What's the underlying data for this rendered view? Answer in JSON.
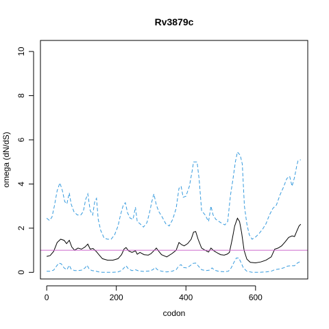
{
  "chart_data": {
    "type": "line",
    "title": "Rv3879c",
    "xlabel": "codon",
    "ylabel": "omega (dN/dS)",
    "xlim": [
      -18,
      750
    ],
    "ylim": [
      -0.3,
      10.5
    ],
    "xticks": [
      0,
      200,
      400,
      600
    ],
    "yticks": [
      0,
      2,
      4,
      6,
      8,
      10
    ],
    "grid": false,
    "reference_line": {
      "y": 1,
      "color": "#cc66cc"
    },
    "series": [
      {
        "role": "estimate",
        "color": "#000000",
        "dash": "solid",
        "points": [
          [
            0,
            0.72
          ],
          [
            10,
            0.76
          ],
          [
            20,
            0.95
          ],
          [
            30,
            1.35
          ],
          [
            40,
            1.5
          ],
          [
            50,
            1.45
          ],
          [
            57,
            1.3
          ],
          [
            65,
            1.45
          ],
          [
            72,
            1.15
          ],
          [
            80,
            1.0
          ],
          [
            90,
            1.1
          ],
          [
            100,
            1.05
          ],
          [
            110,
            1.15
          ],
          [
            118,
            1.28
          ],
          [
            125,
            1.05
          ],
          [
            133,
            1.08
          ],
          [
            142,
            0.95
          ],
          [
            150,
            0.8
          ],
          [
            160,
            0.62
          ],
          [
            175,
            0.55
          ],
          [
            190,
            0.55
          ],
          [
            205,
            0.62
          ],
          [
            215,
            0.8
          ],
          [
            222,
            1.05
          ],
          [
            228,
            1.12
          ],
          [
            235,
            0.98
          ],
          [
            245,
            0.9
          ],
          [
            255,
            0.98
          ],
          [
            260,
            0.82
          ],
          [
            268,
            0.9
          ],
          [
            280,
            0.8
          ],
          [
            292,
            0.78
          ],
          [
            300,
            0.85
          ],
          [
            308,
            0.98
          ],
          [
            315,
            1.1
          ],
          [
            322,
            0.95
          ],
          [
            330,
            0.8
          ],
          [
            345,
            0.7
          ],
          [
            360,
            0.85
          ],
          [
            372,
            1.0
          ],
          [
            380,
            1.35
          ],
          [
            388,
            1.25
          ],
          [
            395,
            1.2
          ],
          [
            405,
            1.3
          ],
          [
            415,
            1.5
          ],
          [
            422,
            1.82
          ],
          [
            428,
            1.85
          ],
          [
            435,
            1.5
          ],
          [
            445,
            1.1
          ],
          [
            455,
            1.0
          ],
          [
            465,
            0.92
          ],
          [
            472,
            1.1
          ],
          [
            480,
            0.98
          ],
          [
            490,
            0.88
          ],
          [
            500,
            0.8
          ],
          [
            510,
            0.78
          ],
          [
            518,
            0.82
          ],
          [
            525,
            0.9
          ],
          [
            533,
            1.5
          ],
          [
            540,
            2.1
          ],
          [
            548,
            2.45
          ],
          [
            554,
            2.3
          ],
          [
            560,
            1.8
          ],
          [
            567,
            1.0
          ],
          [
            575,
            0.6
          ],
          [
            585,
            0.45
          ],
          [
            600,
            0.43
          ],
          [
            615,
            0.47
          ],
          [
            630,
            0.55
          ],
          [
            645,
            0.7
          ],
          [
            655,
            1.05
          ],
          [
            665,
            1.1
          ],
          [
            675,
            1.2
          ],
          [
            685,
            1.38
          ],
          [
            695,
            1.58
          ],
          [
            705,
            1.65
          ],
          [
            712,
            1.62
          ],
          [
            718,
            1.85
          ],
          [
            725,
            2.1
          ],
          [
            730,
            2.18
          ]
        ]
      },
      {
        "role": "upper-bound",
        "color": "#3399dd",
        "dash": "dashed",
        "points": [
          [
            0,
            2.45
          ],
          [
            8,
            2.35
          ],
          [
            15,
            2.5
          ],
          [
            22,
            3.0
          ],
          [
            30,
            3.7
          ],
          [
            38,
            4.05
          ],
          [
            45,
            3.7
          ],
          [
            52,
            3.2
          ],
          [
            58,
            3.1
          ],
          [
            65,
            3.6
          ],
          [
            70,
            3.1
          ],
          [
            78,
            2.75
          ],
          [
            88,
            2.6
          ],
          [
            98,
            2.6
          ],
          [
            105,
            2.75
          ],
          [
            112,
            3.3
          ],
          [
            118,
            3.55
          ],
          [
            125,
            2.8
          ],
          [
            132,
            2.6
          ],
          [
            138,
            3.2
          ],
          [
            143,
            3.35
          ],
          [
            148,
            2.4
          ],
          [
            155,
            1.9
          ],
          [
            165,
            1.55
          ],
          [
            175,
            1.5
          ],
          [
            185,
            1.5
          ],
          [
            195,
            1.7
          ],
          [
            205,
            2.1
          ],
          [
            212,
            2.6
          ],
          [
            220,
            3.05
          ],
          [
            226,
            3.15
          ],
          [
            232,
            2.7
          ],
          [
            240,
            2.45
          ],
          [
            248,
            2.4
          ],
          [
            255,
            2.95
          ],
          [
            260,
            2.3
          ],
          [
            268,
            2.2
          ],
          [
            278,
            2.05
          ],
          [
            288,
            2.25
          ],
          [
            296,
            2.75
          ],
          [
            302,
            3.2
          ],
          [
            308,
            3.55
          ],
          [
            315,
            3.05
          ],
          [
            322,
            2.75
          ],
          [
            332,
            2.5
          ],
          [
            342,
            2.2
          ],
          [
            352,
            2.1
          ],
          [
            362,
            2.4
          ],
          [
            372,
            2.9
          ],
          [
            380,
            3.8
          ],
          [
            386,
            3.9
          ],
          [
            392,
            3.4
          ],
          [
            400,
            3.45
          ],
          [
            410,
            3.9
          ],
          [
            418,
            4.6
          ],
          [
            422,
            5.0
          ],
          [
            432,
            5.0
          ],
          [
            438,
            4.2
          ],
          [
            445,
            2.8
          ],
          [
            455,
            2.6
          ],
          [
            465,
            2.3
          ],
          [
            472,
            3.0
          ],
          [
            478,
            2.6
          ],
          [
            486,
            2.4
          ],
          [
            495,
            2.3
          ],
          [
            505,
            2.2
          ],
          [
            512,
            2.15
          ],
          [
            520,
            2.3
          ],
          [
            528,
            3.5
          ],
          [
            535,
            4.2
          ],
          [
            542,
            5.0
          ],
          [
            548,
            5.45
          ],
          [
            556,
            5.3
          ],
          [
            562,
            4.9
          ],
          [
            568,
            3.0
          ],
          [
            575,
            2.2
          ],
          [
            582,
            1.7
          ],
          [
            590,
            1.5
          ],
          [
            600,
            1.6
          ],
          [
            610,
            1.75
          ],
          [
            620,
            1.95
          ],
          [
            630,
            2.2
          ],
          [
            640,
            2.6
          ],
          [
            650,
            2.9
          ],
          [
            660,
            3.05
          ],
          [
            670,
            3.5
          ],
          [
            680,
            3.85
          ],
          [
            690,
            4.25
          ],
          [
            698,
            4.35
          ],
          [
            705,
            3.9
          ],
          [
            712,
            4.3
          ],
          [
            718,
            4.8
          ],
          [
            722,
            5.05
          ],
          [
            730,
            5.1
          ]
        ]
      },
      {
        "role": "lower-bound",
        "color": "#3399dd",
        "dash": "dashed",
        "points": [
          [
            0,
            0.05
          ],
          [
            10,
            0.05
          ],
          [
            20,
            0.1
          ],
          [
            28,
            0.28
          ],
          [
            35,
            0.42
          ],
          [
            42,
            0.38
          ],
          [
            50,
            0.2
          ],
          [
            58,
            0.12
          ],
          [
            65,
            0.32
          ],
          [
            70,
            0.15
          ],
          [
            80,
            0.08
          ],
          [
            90,
            0.08
          ],
          [
            100,
            0.1
          ],
          [
            110,
            0.2
          ],
          [
            116,
            0.32
          ],
          [
            122,
            0.15
          ],
          [
            130,
            0.08
          ],
          [
            140,
            0.06
          ],
          [
            150,
            0.02
          ],
          [
            160,
            0.0
          ],
          [
            175,
            0.0
          ],
          [
            190,
            0.0
          ],
          [
            205,
            0.02
          ],
          [
            215,
            0.08
          ],
          [
            222,
            0.2
          ],
          [
            228,
            0.3
          ],
          [
            235,
            0.15
          ],
          [
            245,
            0.08
          ],
          [
            255,
            0.12
          ],
          [
            265,
            0.06
          ],
          [
            280,
            0.04
          ],
          [
            295,
            0.06
          ],
          [
            305,
            0.12
          ],
          [
            312,
            0.22
          ],
          [
            318,
            0.12
          ],
          [
            330,
            0.05
          ],
          [
            345,
            0.02
          ],
          [
            360,
            0.05
          ],
          [
            372,
            0.12
          ],
          [
            380,
            0.3
          ],
          [
            386,
            0.35
          ],
          [
            392,
            0.22
          ],
          [
            402,
            0.2
          ],
          [
            412,
            0.3
          ],
          [
            420,
            0.4
          ],
          [
            428,
            0.42
          ],
          [
            435,
            0.3
          ],
          [
            445,
            0.12
          ],
          [
            458,
            0.08
          ],
          [
            468,
            0.1
          ],
          [
            475,
            0.2
          ],
          [
            482,
            0.1
          ],
          [
            495,
            0.04
          ],
          [
            510,
            0.03
          ],
          [
            522,
            0.05
          ],
          [
            530,
            0.2
          ],
          [
            538,
            0.45
          ],
          [
            545,
            0.65
          ],
          [
            552,
            0.65
          ],
          [
            558,
            0.45
          ],
          [
            565,
            0.2
          ],
          [
            575,
            0.05
          ],
          [
            590,
            0.0
          ],
          [
            610,
            0.0
          ],
          [
            630,
            0.02
          ],
          [
            645,
            0.05
          ],
          [
            655,
            0.12
          ],
          [
            668,
            0.15
          ],
          [
            680,
            0.2
          ],
          [
            692,
            0.28
          ],
          [
            702,
            0.3
          ],
          [
            712,
            0.3
          ],
          [
            720,
            0.42
          ],
          [
            730,
            0.5
          ]
        ]
      }
    ]
  }
}
